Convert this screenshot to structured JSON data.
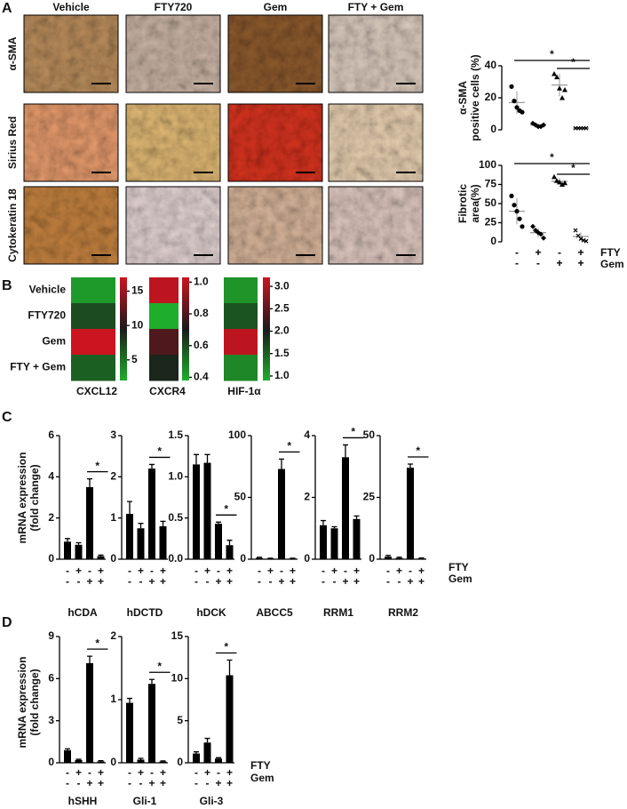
{
  "panels": {
    "a": "A",
    "b": "B",
    "c": "C",
    "d": "D"
  },
  "conditions": {
    "fty": "FTY",
    "gem": "Gem",
    "fty_signs": [
      "-",
      "+",
      "-",
      "+"
    ],
    "gem_signs": [
      "-",
      "-",
      "+",
      "+"
    ]
  },
  "images": {
    "columns": [
      "Vehicle",
      "FTY720",
      "Gem",
      "FTY + Gem"
    ],
    "rows": [
      "α-SMA",
      "Sirius Red",
      "Cytokeratin 18"
    ]
  },
  "mrna_label": [
    "mRNA expression",
    "(fold change)"
  ],
  "chart_data": [
    {
      "type": "strip",
      "ylabel": [
        "α-SMA",
        "positive cells (%)"
      ],
      "ylim": [
        0,
        40
      ],
      "yticks": [
        0,
        20,
        40
      ],
      "groups": [
        {
          "marker": "circle",
          "values": [
            27,
            18,
            14,
            12,
            11
          ],
          "mean": 17,
          "sd": 7
        },
        {
          "marker": "diamond",
          "values": [
            4,
            3,
            2,
            2,
            3
          ],
          "mean": 3,
          "sd": 1
        },
        {
          "marker": "triangle",
          "values": [
            35,
            33,
            26,
            20,
            25
          ],
          "mean": 28,
          "sd": 7
        },
        {
          "marker": "x",
          "values": [
            1,
            1,
            1,
            1,
            1
          ],
          "mean": 1,
          "sd": 0.3
        }
      ],
      "significance": [
        {
          "groups": [
            0,
            3
          ],
          "label": "*"
        },
        {
          "groups": [
            2,
            3
          ],
          "label": "*"
        }
      ]
    },
    {
      "type": "strip",
      "ylabel": [
        "Fibrotic",
        "area(%)"
      ],
      "ylim": [
        0,
        100
      ],
      "yticks": [
        0,
        25,
        50,
        75,
        100
      ],
      "groups": [
        {
          "marker": "circle",
          "values": [
            60,
            48,
            40,
            30,
            20
          ],
          "mean": 40,
          "sd": 17
        },
        {
          "marker": "diamond",
          "values": [
            20,
            15,
            12,
            10,
            5
          ],
          "mean": 12,
          "sd": 6
        },
        {
          "marker": "triangle",
          "values": [
            85,
            80,
            78,
            75,
            77
          ],
          "mean": 79,
          "sd": 4
        },
        {
          "marker": "x",
          "values": [
            15,
            8,
            4,
            2,
            1
          ],
          "mean": 7,
          "sd": 5
        }
      ],
      "significance": [
        {
          "groups": [
            0,
            3
          ],
          "label": "*"
        },
        {
          "groups": [
            2,
            3
          ],
          "label": "*"
        }
      ]
    },
    {
      "type": "heatmap",
      "xlabel": "CXCL12",
      "categories": [
        "Vehicle",
        "FTY720",
        "Gem",
        "FTY + Gem"
      ],
      "values": [
        3,
        7,
        17,
        6
      ],
      "clim": [
        2,
        17
      ],
      "cticks": [
        5,
        10,
        15
      ],
      "colormap": [
        "#1fae2c",
        "#1a1a1a",
        "#cc1420"
      ]
    },
    {
      "type": "heatmap",
      "xlabel": "CXCR4",
      "values": [
        1.0,
        0.38,
        0.8,
        0.68
      ],
      "clim": [
        0.38,
        1.03
      ],
      "cticks": [
        0.4,
        0.6,
        0.8,
        {
          "value": 1.0,
          "label": "1.0"
        }
      ],
      "colormap": [
        "#1fae2c",
        "#1a1a1a",
        "#cc1420"
      ]
    },
    {
      "type": "heatmap",
      "xlabel": "HIF-1α",
      "values": [
        1.1,
        1.6,
        3.1,
        1.2
      ],
      "clim": [
        0.9,
        3.2
      ],
      "cticks": [
        {
          "value": 1.0,
          "label": "1.0"
        },
        1.5,
        {
          "value": 2.0,
          "label": "2.0"
        },
        2.5,
        {
          "value": 3.0,
          "label": "3.0"
        }
      ],
      "colormap": [
        "#1fae2c",
        "#1a1a1a",
        "#cc1420"
      ]
    },
    {
      "type": "bar",
      "xlabel": "hCDA",
      "ylim": [
        0,
        6
      ],
      "yticks": [
        0,
        2,
        4,
        6
      ],
      "values": [
        0.85,
        0.7,
        3.5,
        0.15
      ],
      "errors": [
        0.15,
        0.1,
        0.4,
        0.05
      ],
      "color": "#000000",
      "significance": [
        {
          "groups": [
            2,
            3
          ],
          "label": "*"
        }
      ]
    },
    {
      "type": "bar",
      "xlabel": "hDCTD",
      "ylim": [
        0,
        3
      ],
      "yticks": [
        0,
        1,
        2,
        3
      ],
      "values": [
        1.1,
        0.75,
        2.2,
        0.8
      ],
      "errors": [
        0.3,
        0.12,
        0.1,
        0.12
      ],
      "color": "#000000",
      "significance": [
        {
          "groups": [
            2,
            3
          ],
          "label": "*"
        }
      ]
    },
    {
      "type": "bar",
      "xlabel": "hDCK",
      "ylim": [
        0,
        1.5
      ],
      "yticks": [
        {
          "value": 0,
          "label": "0.0"
        },
        0.5,
        {
          "value": 1,
          "label": "1.0"
        },
        1.5
      ],
      "values": [
        1.15,
        1.17,
        0.43,
        0.17
      ],
      "errors": [
        0.12,
        0.1,
        0.02,
        0.06
      ],
      "color": "#000000",
      "significance": [
        {
          "groups": [
            2,
            3
          ],
          "label": "*"
        }
      ]
    },
    {
      "type": "bar",
      "xlabel": "ABCC5",
      "ylim": [
        0,
        100
      ],
      "yticks": [
        0,
        50,
        100
      ],
      "values": [
        1,
        0.5,
        73,
        0.5
      ],
      "errors": [
        0.5,
        0.3,
        8,
        0.3
      ],
      "color": "#000000",
      "significance": [
        {
          "groups": [
            2,
            3
          ],
          "label": "*"
        }
      ]
    },
    {
      "type": "bar",
      "xlabel": "RRM1",
      "ylim": [
        0,
        4
      ],
      "yticks": [
        0,
        2,
        4
      ],
      "values": [
        1.1,
        1.0,
        3.3,
        1.3
      ],
      "errors": [
        0.15,
        0.05,
        0.4,
        0.1
      ],
      "color": "#000000",
      "significance": [
        {
          "groups": [
            2,
            3
          ],
          "label": "*"
        }
      ]
    },
    {
      "type": "bar",
      "xlabel": "RRM2",
      "ylim": [
        0,
        50
      ],
      "yticks": [
        0,
        25,
        50
      ],
      "values": [
        1,
        0.5,
        37,
        0.3
      ],
      "errors": [
        0.5,
        0.3,
        1.5,
        0.2
      ],
      "color": "#000000",
      "significance": [
        {
          "groups": [
            2,
            3
          ],
          "label": "*"
        }
      ]
    },
    {
      "type": "bar",
      "xlabel": "hSHH",
      "ylim": [
        0,
        9
      ],
      "yticks": [
        0,
        3,
        6,
        9
      ],
      "values": [
        0.9,
        0.2,
        7.1,
        0.1
      ],
      "errors": [
        0.1,
        0.05,
        0.5,
        0.05
      ],
      "color": "#000000",
      "significance": [
        {
          "groups": [
            2,
            3
          ],
          "label": "*"
        }
      ]
    },
    {
      "type": "bar",
      "xlabel": "Gli-1",
      "ylim": [
        0,
        2
      ],
      "yticks": [
        0,
        1,
        2
      ],
      "values": [
        0.95,
        0.05,
        1.25,
        0.02
      ],
      "errors": [
        0.07,
        0.02,
        0.07,
        0.01
      ],
      "color": "#000000",
      "significance": [
        {
          "groups": [
            2,
            3
          ],
          "label": "*"
        }
      ]
    },
    {
      "type": "bar",
      "xlabel": "Gli-3",
      "ylim": [
        0,
        15
      ],
      "yticks": [
        0,
        5,
        10,
        15
      ],
      "values": [
        1.1,
        2.4,
        0.5,
        10.4
      ],
      "errors": [
        0.2,
        0.5,
        0.1,
        1.8
      ],
      "color": "#000000",
      "significance": [
        {
          "groups": [
            2,
            3
          ],
          "label": "*"
        }
      ]
    }
  ]
}
